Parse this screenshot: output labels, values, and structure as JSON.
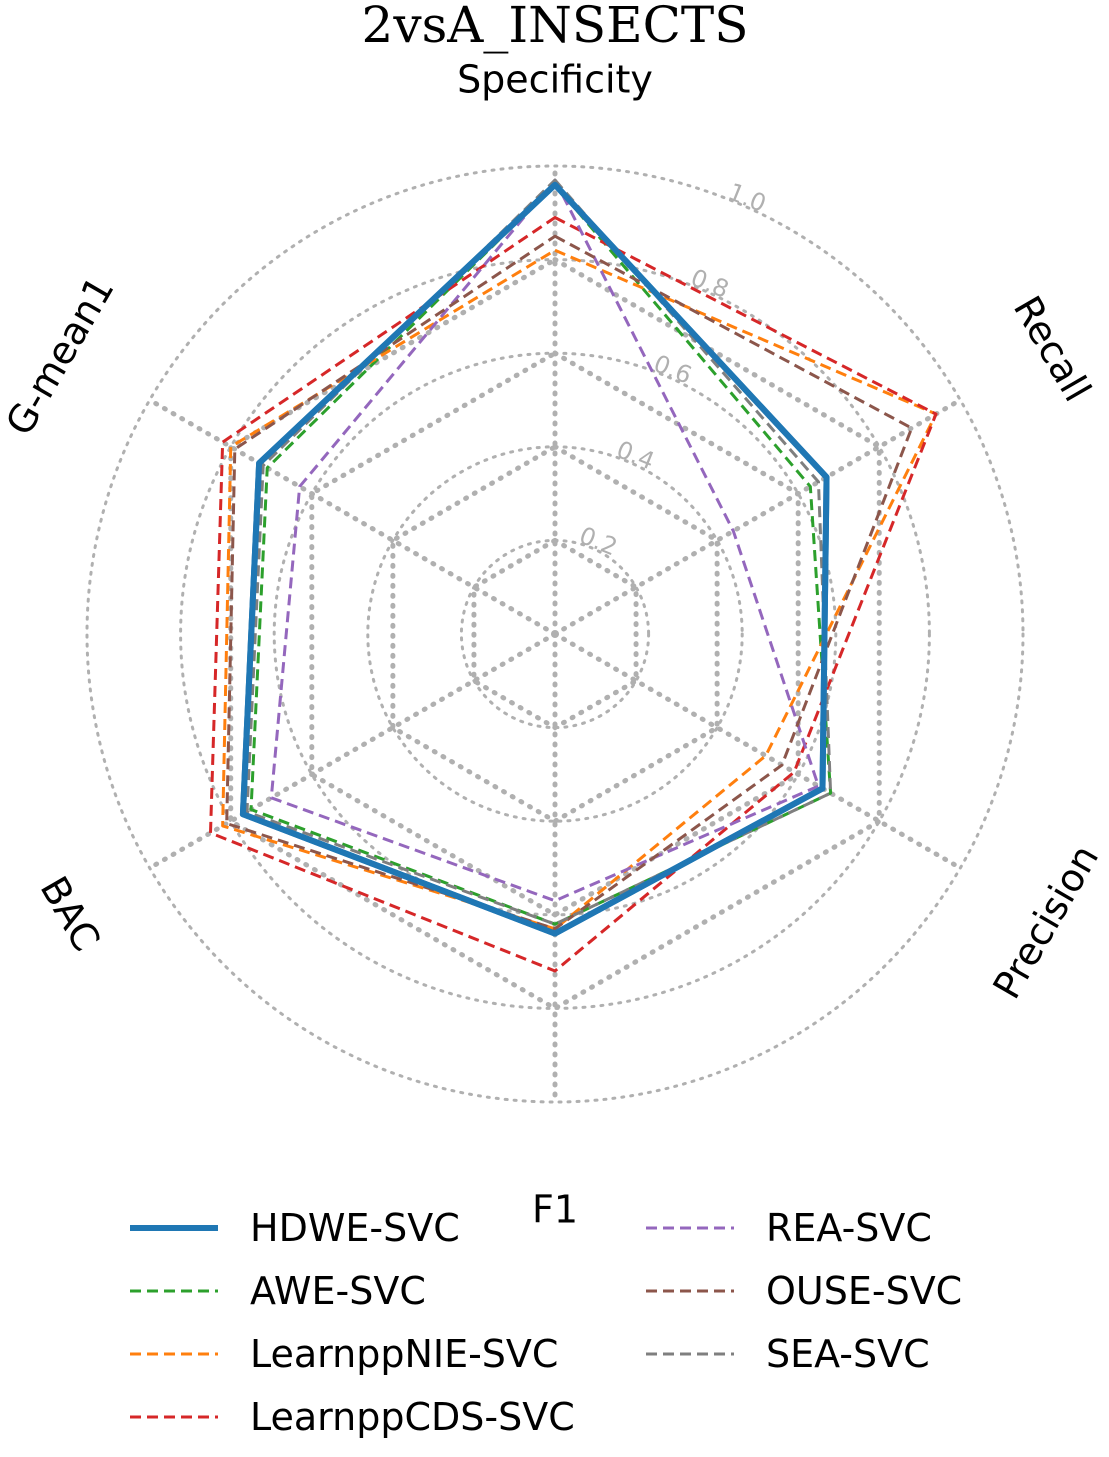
{
  "chart_data": {
    "type": "radar",
    "title": "2vsA_INSECTS",
    "axes": [
      "Specificity",
      "Recall",
      "Precision",
      "F1",
      "BAC",
      "G-mean1"
    ],
    "rlim": [
      0,
      1.0
    ],
    "rticks": [
      "0.2",
      "0.4",
      "0.6",
      "0.8",
      "1.0"
    ],
    "rtick_values": [
      0.2,
      0.4,
      0.6,
      0.8,
      1.0
    ],
    "grid": true,
    "legend_position": "bottom",
    "legend_columns": 2,
    "series": [
      {
        "name": "HDWE-SVC",
        "color": "#1f77b4",
        "style": "solid",
        "values": [
          0.96,
          0.67,
          0.66,
          0.64,
          0.77,
          0.73
        ]
      },
      {
        "name": "AWE-SVC",
        "color": "#2ca02c",
        "style": "dashed",
        "values": [
          0.96,
          0.63,
          0.68,
          0.62,
          0.75,
          0.71
        ]
      },
      {
        "name": "LearnppNIE-SVC",
        "color": "#ff7f0e",
        "style": "dashed",
        "values": [
          0.82,
          0.94,
          0.52,
          0.63,
          0.82,
          0.8
        ]
      },
      {
        "name": "LearnppCDS-SVC",
        "color": "#d62728",
        "style": "dashed",
        "values": [
          0.89,
          0.94,
          0.59,
          0.72,
          0.85,
          0.82
        ]
      },
      {
        "name": "REA-SVC",
        "color": "#9467bd",
        "style": "dashed",
        "values": [
          0.97,
          0.44,
          0.65,
          0.57,
          0.7,
          0.63
        ]
      },
      {
        "name": "OUSE-SVC",
        "color": "#8c564b",
        "style": "dashed",
        "values": [
          0.85,
          0.88,
          0.56,
          0.63,
          0.81,
          0.79
        ]
      },
      {
        "name": "SEA-SVC",
        "color": "#7f7f7f",
        "style": "dashed",
        "values": [
          0.97,
          0.65,
          0.68,
          0.62,
          0.76,
          0.72
        ]
      }
    ]
  }
}
